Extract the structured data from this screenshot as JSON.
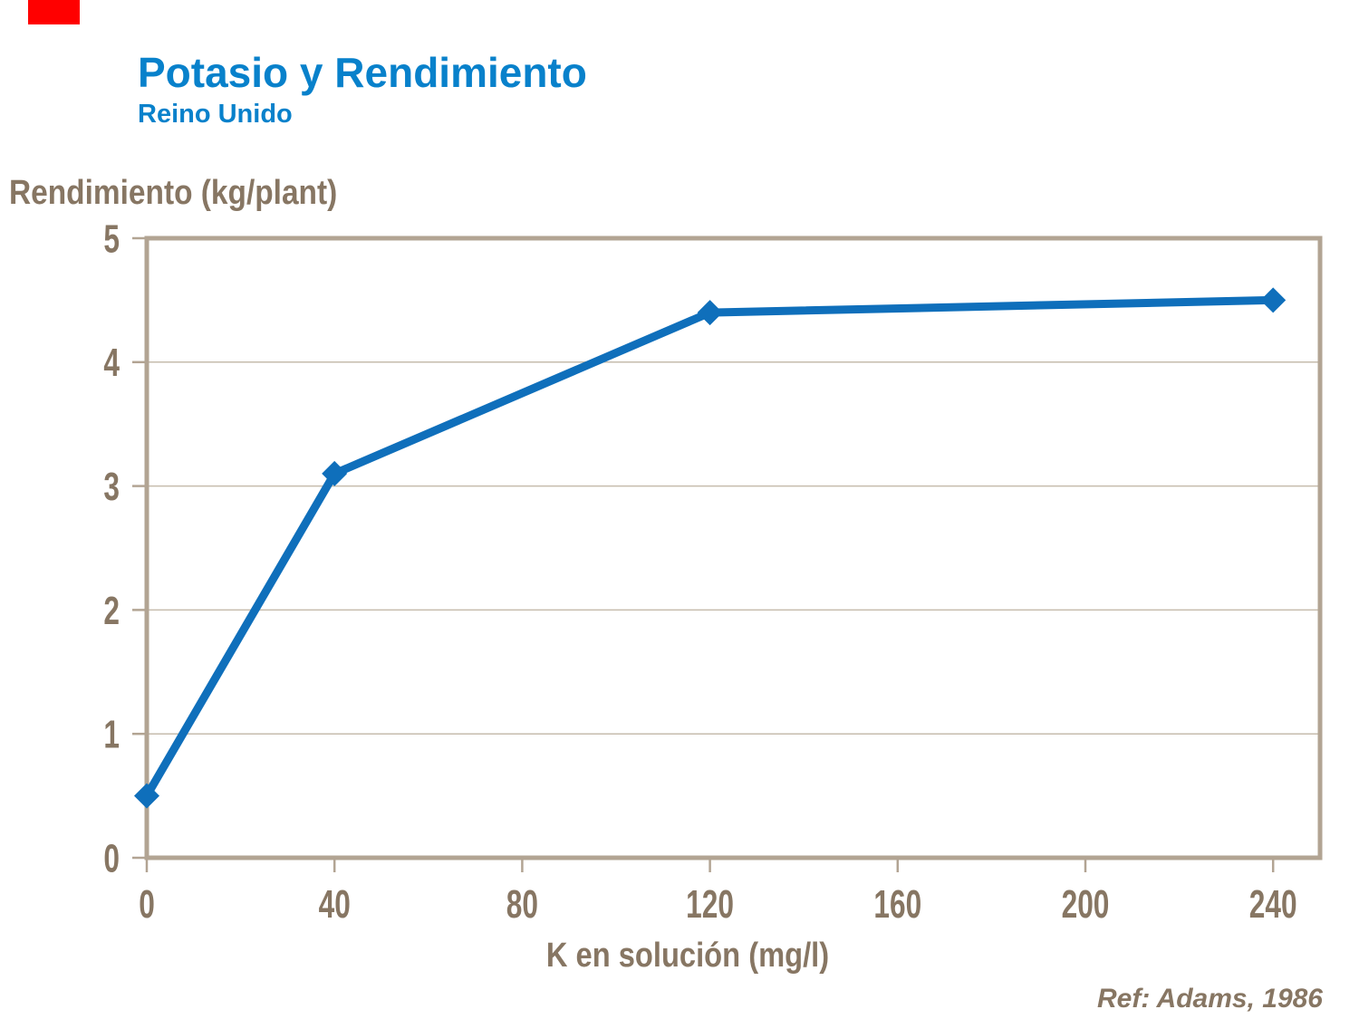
{
  "slide": {
    "title": "Potasio y Rendimiento",
    "subtitle": "Reino Unido",
    "reference": "Ref: Adams, 1986",
    "colors": {
      "title_blue": "#0881CB",
      "accent_red": "#FF0000",
      "text_brown": "#877663"
    }
  },
  "chart_data": {
    "type": "line",
    "title": "Potasio y Rendimiento",
    "subtitle": "Reino Unido",
    "xlabel": "K en solución (mg/l)",
    "ylabel": "Rendimiento (kg/plant)",
    "x": [
      0,
      40,
      120,
      240
    ],
    "series": [
      {
        "name": "Rendimiento (kg/plant)",
        "values": [
          0.5,
          3.1,
          4.4,
          4.5
        ]
      }
    ],
    "x_ticks": [
      0,
      40,
      80,
      120,
      160,
      200,
      240
    ],
    "y_ticks": [
      0,
      1,
      2,
      3,
      4,
      5
    ],
    "xlim": [
      0,
      250
    ],
    "ylim": [
      0,
      5
    ],
    "grid": "horizontal-only",
    "legend": "none",
    "marker": "diamond",
    "annotation": "Ref: Adams, 1986",
    "colors": {
      "line": "#0F6FBB",
      "frame": "#B2A493",
      "grid": "#C6BCAD",
      "text": "#877663"
    }
  }
}
